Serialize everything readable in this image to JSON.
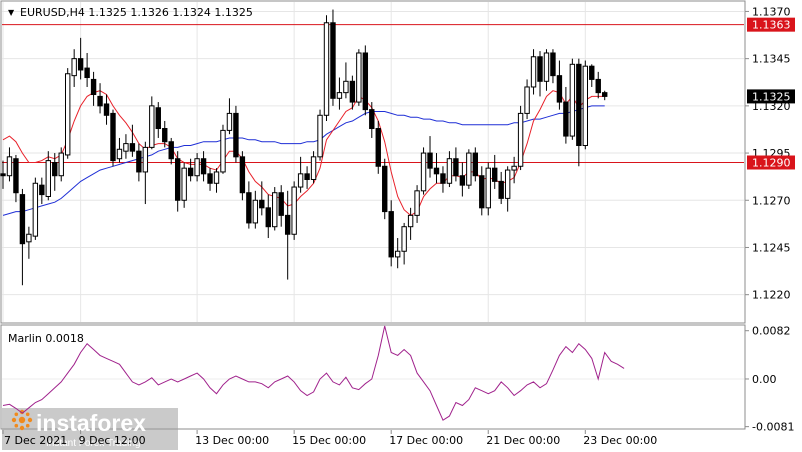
{
  "header": {
    "symbol_info": "EURUSD,H4  1.1325 1.1326 1.1324 1.1325"
  },
  "indicator": {
    "label": "Marlin 0.0018"
  },
  "price_scale": {
    "ticks": [
      "1.1370",
      "1.1345",
      "1.1320",
      "1.1295",
      "1.1270",
      "1.1245",
      "1.1220"
    ],
    "current_price_label": "1.1325",
    "resistance_label": "1.1363",
    "support_label": "1.1290"
  },
  "indicator_scale": {
    "ticks": [
      "0.0082",
      "0.00",
      "-0.0081"
    ]
  },
  "time_axis": {
    "labels": [
      "7 Dec 2021",
      "9 Dec 12:00",
      "13 Dec 00:00",
      "15 Dec 00:00",
      "17 Dec 00:00",
      "21 Dec 00:00",
      "23 Dec 00:00"
    ]
  },
  "watermark": {
    "brand": "instaforex",
    "tagline": "Instant Forex Trading"
  },
  "colors": {
    "bull_candle": "#ffffff",
    "bear_candle": "#000000",
    "fast_ma": "#e8212a",
    "slow_ma": "#1f2fd6",
    "level_line": "#d9141b",
    "marlin": "#a0228c",
    "brand": "#f08a1d"
  },
  "chart_data": [
    {
      "type": "candlestick",
      "title": "EURUSD,H4",
      "ylim": [
        1.1205,
        1.1375
      ],
      "levels": [
        1.1363,
        1.129
      ],
      "current_price": 1.1325,
      "candles": [
        [
          1.1284,
          1.1291,
          1.1276,
          1.1283
        ],
        [
          1.1283,
          1.1298,
          1.128,
          1.1293
        ],
        [
          1.1292,
          1.1294,
          1.1269,
          1.1274
        ],
        [
          1.1273,
          1.1276,
          1.1225,
          1.1247
        ],
        [
          1.1248,
          1.1256,
          1.1239,
          1.1252
        ],
        [
          1.1251,
          1.1282,
          1.1249,
          1.1279
        ],
        [
          1.1278,
          1.1282,
          1.1268,
          1.1273
        ],
        [
          1.1272,
          1.1296,
          1.127,
          1.1291
        ],
        [
          1.129,
          1.1295,
          1.1275,
          1.1283
        ],
        [
          1.1283,
          1.1298,
          1.128,
          1.1295
        ],
        [
          1.1294,
          1.134,
          1.1292,
          1.1337
        ],
        [
          1.1336,
          1.135,
          1.133,
          1.1345
        ],
        [
          1.1345,
          1.1356,
          1.1334,
          1.1339
        ],
        [
          1.134,
          1.1348,
          1.133,
          1.1335
        ],
        [
          1.1334,
          1.1338,
          1.132,
          1.1326
        ],
        [
          1.1325,
          1.1332,
          1.1316,
          1.132
        ],
        [
          1.1321,
          1.1326,
          1.131,
          1.1315
        ],
        [
          1.1316,
          1.1318,
          1.1288,
          1.1291
        ],
        [
          1.1292,
          1.1303,
          1.129,
          1.1297
        ],
        [
          1.1296,
          1.1305,
          1.1292,
          1.13
        ],
        [
          1.13,
          1.131,
          1.1293,
          1.1296
        ],
        [
          1.1296,
          1.13,
          1.128,
          1.1285
        ],
        [
          1.1285,
          1.1301,
          1.1268,
          1.1298
        ],
        [
          1.1298,
          1.1325,
          1.1297,
          1.132
        ],
        [
          1.1319,
          1.1322,
          1.1303,
          1.1308
        ],
        [
          1.1308,
          1.1312,
          1.1298,
          1.1301
        ],
        [
          1.1301,
          1.1303,
          1.1289,
          1.1292
        ],
        [
          1.1292,
          1.1296,
          1.1264,
          1.127
        ],
        [
          1.127,
          1.129,
          1.1266,
          1.1287
        ],
        [
          1.1287,
          1.1292,
          1.128,
          1.1283
        ],
        [
          1.1283,
          1.1295,
          1.128,
          1.1292
        ],
        [
          1.1292,
          1.1296,
          1.128,
          1.1284
        ],
        [
          1.1284,
          1.1287,
          1.1275,
          1.1279
        ],
        [
          1.1279,
          1.1287,
          1.1274,
          1.1285
        ],
        [
          1.1285,
          1.131,
          1.1284,
          1.1307
        ],
        [
          1.1307,
          1.1324,
          1.1305,
          1.1316
        ],
        [
          1.1316,
          1.132,
          1.129,
          1.1293
        ],
        [
          1.1293,
          1.1296,
          1.127,
          1.1274
        ],
        [
          1.1274,
          1.128,
          1.1255,
          1.1258
        ],
        [
          1.1258,
          1.1275,
          1.1255,
          1.127
        ],
        [
          1.127,
          1.128,
          1.1262,
          1.1266
        ],
        [
          1.1266,
          1.1273,
          1.125,
          1.1256
        ],
        [
          1.1256,
          1.1277,
          1.1254,
          1.1274
        ],
        [
          1.1274,
          1.1278,
          1.1256,
          1.1262
        ],
        [
          1.1262,
          1.1275,
          1.1228,
          1.1252
        ],
        [
          1.1252,
          1.128,
          1.1249,
          1.1277
        ],
        [
          1.1277,
          1.1293,
          1.1274,
          1.1284
        ],
        [
          1.1284,
          1.1288,
          1.1276,
          1.1281
        ],
        [
          1.1281,
          1.1296,
          1.1279,
          1.1293
        ],
        [
          1.1293,
          1.1318,
          1.1291,
          1.1315
        ],
        [
          1.1315,
          1.1368,
          1.1312,
          1.1364
        ],
        [
          1.1364,
          1.1371,
          1.132,
          1.1324
        ],
        [
          1.1324,
          1.1335,
          1.1318,
          1.1327
        ],
        [
          1.1327,
          1.1343,
          1.1324,
          1.1333
        ],
        [
          1.1333,
          1.1336,
          1.1318,
          1.1322
        ],
        [
          1.1322,
          1.135,
          1.132,
          1.1348
        ],
        [
          1.1348,
          1.1352,
          1.1315,
          1.1318
        ],
        [
          1.1318,
          1.1322,
          1.1303,
          1.1308
        ],
        [
          1.1308,
          1.1312,
          1.1284,
          1.1288
        ],
        [
          1.1288,
          1.1292,
          1.126,
          1.1264
        ],
        [
          1.1264,
          1.127,
          1.1235,
          1.124
        ],
        [
          1.124,
          1.125,
          1.1234,
          1.1243
        ],
        [
          1.1243,
          1.1258,
          1.1236,
          1.1256
        ],
        [
          1.1256,
          1.1266,
          1.1249,
          1.1262
        ],
        [
          1.1262,
          1.1278,
          1.1258,
          1.1275
        ],
        [
          1.1275,
          1.1298,
          1.1273,
          1.1295
        ],
        [
          1.1295,
          1.1304,
          1.1282,
          1.1287
        ],
        [
          1.1287,
          1.1295,
          1.1279,
          1.1284
        ],
        [
          1.1284,
          1.1288,
          1.1274,
          1.1279
        ],
        [
          1.1279,
          1.1296,
          1.1277,
          1.1292
        ],
        [
          1.1292,
          1.1298,
          1.128,
          1.1283
        ],
        [
          1.1283,
          1.129,
          1.1272,
          1.1278
        ],
        [
          1.1278,
          1.1297,
          1.1276,
          1.1295
        ],
        [
          1.1295,
          1.1298,
          1.128,
          1.1283
        ],
        [
          1.1283,
          1.1288,
          1.1262,
          1.1266
        ],
        [
          1.1266,
          1.129,
          1.1262,
          1.1287
        ],
        [
          1.1287,
          1.1294,
          1.1276,
          1.128
        ],
        [
          1.128,
          1.1285,
          1.1268,
          1.1271
        ],
        [
          1.1271,
          1.1288,
          1.1264,
          1.1286
        ],
        [
          1.1286,
          1.1293,
          1.1279,
          1.1288
        ],
        [
          1.1288,
          1.132,
          1.1286,
          1.1316
        ],
        [
          1.1316,
          1.1334,
          1.1313,
          1.133
        ],
        [
          1.133,
          1.135,
          1.1326,
          1.1346
        ],
        [
          1.1346,
          1.1349,
          1.1325,
          1.1333
        ],
        [
          1.1333,
          1.135,
          1.1328,
          1.1348
        ],
        [
          1.1348,
          1.135,
          1.1332,
          1.1336
        ],
        [
          1.1336,
          1.1344,
          1.1318,
          1.1322
        ],
        [
          1.1322,
          1.133,
          1.13,
          1.1304
        ],
        [
          1.1304,
          1.1345,
          1.1302,
          1.1342
        ],
        [
          1.1342,
          1.1345,
          1.1288,
          1.1299
        ],
        [
          1.1299,
          1.1344,
          1.1297,
          1.1341
        ],
        [
          1.1341,
          1.1342,
          1.133,
          1.1334
        ],
        [
          1.1334,
          1.1338,
          1.1324,
          1.1327
        ],
        [
          1.1327,
          1.1328,
          1.1323,
          1.1325
        ]
      ],
      "fast_ma": [
        1.1302,
        1.1304,
        1.1301,
        1.1295,
        1.129,
        1.129,
        1.1291,
        1.1293,
        1.1292,
        1.1294,
        1.1302,
        1.1312,
        1.132,
        1.1325,
        1.1327,
        1.1328,
        1.1326,
        1.132,
        1.1315,
        1.1311,
        1.1306,
        1.13,
        1.1297,
        1.1299,
        1.13,
        1.13,
        1.1298,
        1.1292,
        1.129,
        1.1289,
        1.1289,
        1.1289,
        1.1287,
        1.1286,
        1.1291,
        1.1296,
        1.1296,
        1.1292,
        1.1285,
        1.128,
        1.1277,
        1.1273,
        1.1272,
        1.1271,
        1.1267,
        1.1268,
        1.1272,
        1.1275,
        1.1279,
        1.1287,
        1.1302,
        1.1307,
        1.1312,
        1.1317,
        1.1319,
        1.1325,
        1.1323,
        1.1319,
        1.1312,
        1.1301,
        1.1285,
        1.1272,
        1.1265,
        1.1262,
        1.1264,
        1.1272,
        1.1276,
        1.1279,
        1.1279,
        1.1283,
        1.1283,
        1.1282,
        1.1285,
        1.1285,
        1.1281,
        1.1282,
        1.1281,
        1.1279,
        1.128,
        1.1282,
        1.129,
        1.13,
        1.1312,
        1.1318,
        1.1325,
        1.1328,
        1.1327,
        1.1321,
        1.1325,
        1.1319,
        1.1323,
        1.1325,
        1.1325,
        1.1325
      ],
      "slow_ma": [
        1.1262,
        1.1263,
        1.1264,
        1.1264,
        1.1265,
        1.1266,
        1.1267,
        1.1268,
        1.1269,
        1.1271,
        1.1274,
        1.1277,
        1.128,
        1.1282,
        1.1284,
        1.1286,
        1.1287,
        1.1288,
        1.1289,
        1.129,
        1.1291,
        1.1292,
        1.1293,
        1.1294,
        1.1296,
        1.1297,
        1.1298,
        1.1298,
        1.1299,
        1.1299,
        1.13,
        1.1301,
        1.1301,
        1.1301,
        1.1302,
        1.1303,
        1.1303,
        1.1303,
        1.1302,
        1.1302,
        1.1301,
        1.1301,
        1.1301,
        1.13,
        1.13,
        1.13,
        1.13,
        1.1301,
        1.1301,
        1.1302,
        1.1305,
        1.1307,
        1.1309,
        1.1311,
        1.1312,
        1.1314,
        1.1316,
        1.1317,
        1.1317,
        1.1317,
        1.1316,
        1.1315,
        1.1315,
        1.1314,
        1.1314,
        1.1313,
        1.1313,
        1.1312,
        1.1312,
        1.1311,
        1.1311,
        1.131,
        1.131,
        1.131,
        1.131,
        1.131,
        1.131,
        1.131,
        1.131,
        1.1311,
        1.1311,
        1.1312,
        1.1313,
        1.1313,
        1.1314,
        1.1315,
        1.1316,
        1.1316,
        1.1317,
        1.1318,
        1.1319,
        1.132,
        1.132,
        1.132
      ]
    },
    {
      "type": "line",
      "title": "Marlin 0.0018",
      "ylim": [
        -0.0085,
        0.009
      ],
      "series": [
        {
          "values": [
            -0.0045,
            -0.0043,
            -0.005,
            -0.0058,
            -0.0049,
            -0.004,
            -0.0035,
            -0.0025,
            -0.0015,
            -0.0005,
            0.001,
            0.0025,
            0.0045,
            0.006,
            0.005,
            0.004,
            0.0035,
            0.003,
            0.0025,
            0.001,
            -0.0005,
            -0.001,
            -0.0005,
            0.0002,
            -0.001,
            -0.0005,
            0.0,
            -0.0005,
            0.0,
            0.0005,
            0.001,
            0.0,
            -0.0015,
            -0.0025,
            -0.001,
            0.0,
            0.0005,
            0.0,
            -0.0005,
            -0.0005,
            -0.0008,
            -0.0015,
            -0.0005,
            0.0,
            0.0005,
            -0.0005,
            -0.002,
            -0.0028,
            -0.0022,
            0.0,
            0.001,
            -0.0005,
            -0.001,
            0.0003,
            -0.0015,
            -0.0018,
            -0.0008,
            0.0,
            0.004,
            0.009,
            0.0045,
            0.004,
            0.005,
            0.004,
            0.001,
            -0.0005,
            -0.002,
            -0.0045,
            -0.007,
            -0.0063,
            -0.004,
            -0.0045,
            -0.0035,
            -0.0015,
            -0.002,
            -0.0025,
            -0.002,
            -0.0005,
            -0.0015,
            -0.0028,
            -0.002,
            -0.001,
            -0.0005,
            -0.0015,
            -0.0008,
            0.0015,
            0.004,
            0.0055,
            0.0045,
            0.006,
            0.005,
            0.0035,
            0.0,
            0.0045,
            0.003,
            0.0025,
            0.0018
          ]
        }
      ]
    }
  ]
}
